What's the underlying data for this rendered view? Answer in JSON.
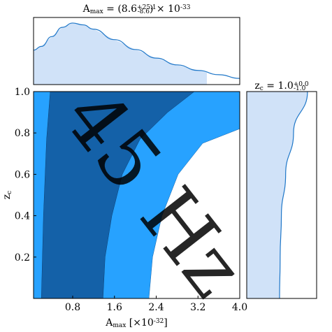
{
  "chart_data": {
    "type": "corner",
    "title": "A_{max} = (8.6^{+25.1}_{-8.6}) × 10^{-33}",
    "right_title": "z_{c} = 1.0^{+0.0}_{-1.0}",
    "xlabel": "A_{max} [×10^{-32}]",
    "ylabel": "z_{c}",
    "watermark": "45 Hz",
    "xlim": [
      0.05,
      4.0
    ],
    "ylim": [
      0,
      1.0
    ],
    "xticks": [
      0.8,
      1.6,
      2.4,
      3.2,
      {
        "value": 4.0,
        "label": "4.0"
      }
    ],
    "yticks": [
      0.2,
      0.4,
      0.6,
      0.8,
      {
        "value": 1.0,
        "label": "1.0"
      }
    ],
    "regions": [
      {
        "color": "#27a2ff",
        "right_x": [
          2.26,
          2.33,
          2.51,
          2.82,
          3.29,
          4.0
        ],
        "right_y": [
          0,
          0.2,
          0.4,
          0.6,
          0.75,
          0.82
        ]
      },
      {
        "color": "#1461a8",
        "left_x": [
          0.2,
          0.24,
          0.3,
          0.37
        ],
        "left_y": [
          0,
          0.4,
          0.77,
          1.0
        ],
        "right_x": [
          1.38,
          1.42,
          1.55,
          1.75,
          2.09,
          2.62,
          3.13
        ],
        "right_y": [
          0,
          0.2,
          0.4,
          0.6,
          0.77,
          0.9,
          1.0
        ]
      }
    ],
    "top_marginal": {
      "color": "#1f77c8",
      "fill": "#d0e2f8",
      "ylim": [
        0,
        1.09
      ],
      "shade_range": [
        0.05,
        3.37
      ],
      "x": [
        0.05,
        0.2,
        0.4,
        0.6,
        0.8,
        1.0,
        1.2,
        1.6,
        2.0,
        2.4,
        2.8,
        3.2,
        3.6,
        4.0
      ],
      "values": [
        0.56,
        0.62,
        0.78,
        0.93,
        1.0,
        0.97,
        0.9,
        0.73,
        0.57,
        0.43,
        0.32,
        0.23,
        0.16,
        0.1
      ]
    },
    "right_marginal": {
      "color": "#1f77c8",
      "fill": "#d0e2f8",
      "xlim": [
        0,
        1.15
      ],
      "y": [
        0,
        0.2,
        0.4,
        0.6,
        0.8,
        1.0
      ],
      "values": [
        0.54,
        0.55,
        0.57,
        0.64,
        0.77,
        1.0
      ]
    }
  }
}
